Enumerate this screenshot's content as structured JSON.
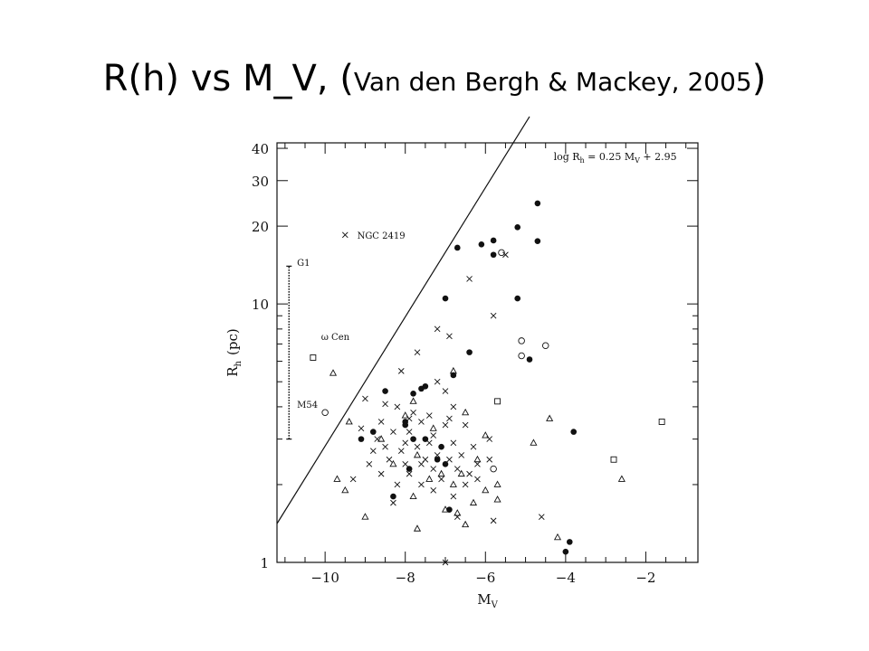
{
  "slide": {
    "title_main": "R(h) vs M_V, ",
    "title_paren_open": "(",
    "title_sub": "Van den Bergh & Mackey, 2005",
    "title_paren_close": ")"
  },
  "colors": {
    "ink": "#111111",
    "background": "#ffffff"
  },
  "chart_data": {
    "type": "scatter",
    "xlabel": "M",
    "xlabel_sub": "V",
    "ylabel": "R",
    "ylabel_sub": "h",
    "ylabel_unit": "(pc)",
    "xlim": [
      -11.2,
      -0.7
    ],
    "ylim": [
      1,
      42
    ],
    "y_scale": "log",
    "x_ticks": [
      -10,
      -8,
      -6,
      -4,
      -2
    ],
    "x_tick_labels": [
      "−10",
      "−8",
      "−6",
      "−4",
      "−2"
    ],
    "y_ticks": [
      1,
      10,
      20,
      30,
      40
    ],
    "y_tick_labels": [
      "1",
      "10",
      "20",
      "30",
      "40"
    ],
    "grid": false,
    "line": {
      "equation_lhs": "log R",
      "equation_lhs_sub": "h",
      "equation_mid": " = 0.25 M",
      "equation_mid_sub": "V",
      "equation_rhs": " + 2.95",
      "slope": 0.25,
      "intercept": 2.95,
      "x_range": [
        -11.2,
        -4.9
      ]
    },
    "labels": [
      {
        "text": "NGC 2419",
        "x": -9.2,
        "y": 18.5
      },
      {
        "text": "G1",
        "x": -10.7,
        "y": 14.5
      },
      {
        "text": "ω Cen",
        "x": -10.1,
        "y": 7.5
      },
      {
        "text": "M54",
        "x": -10.7,
        "y": 4.1
      }
    ],
    "error_bar": {
      "x": -10.9,
      "y_low": 3.0,
      "y_high": 14.0
    },
    "series": [
      {
        "marker": "filled-circle",
        "points": [
          [
            -4.7,
            24.5
          ],
          [
            -5.2,
            19.8
          ],
          [
            -4.7,
            17.5
          ],
          [
            -5.8,
            17.6
          ],
          [
            -6.7,
            16.5
          ],
          [
            -6.1,
            17.0
          ],
          [
            -5.8,
            15.5
          ],
          [
            -5.2,
            10.5
          ],
          [
            -7.0,
            10.5
          ],
          [
            -6.4,
            6.5
          ],
          [
            -6.8,
            5.3
          ],
          [
            -7.5,
            4.8
          ],
          [
            -7.8,
            4.5
          ],
          [
            -8.0,
            3.5
          ],
          [
            -8.5,
            4.6
          ],
          [
            -7.6,
            4.7
          ],
          [
            -4.9,
            6.1
          ],
          [
            -3.8,
            3.2
          ],
          [
            -7.8,
            3.0
          ],
          [
            -7.5,
            3.0
          ],
          [
            -7.1,
            2.8
          ],
          [
            -8.8,
            3.2
          ],
          [
            -9.1,
            3.0
          ],
          [
            -8.0,
            3.4
          ],
          [
            -7.2,
            2.5
          ],
          [
            -7.9,
            2.3
          ],
          [
            -7.0,
            2.4
          ],
          [
            -8.3,
            1.8
          ],
          [
            -6.9,
            1.6
          ],
          [
            -3.9,
            1.2
          ],
          [
            -4.0,
            1.1
          ]
        ]
      },
      {
        "marker": "cross",
        "points": [
          [
            -9.5,
            18.5
          ],
          [
            -5.5,
            15.5
          ],
          [
            -6.4,
            12.5
          ],
          [
            -5.8,
            9.0
          ],
          [
            -7.2,
            8.0
          ],
          [
            -6.9,
            7.5
          ],
          [
            -7.7,
            6.5
          ],
          [
            -8.1,
            5.5
          ],
          [
            -7.2,
            5.0
          ],
          [
            -7.0,
            4.6
          ],
          [
            -9.0,
            4.3
          ],
          [
            -8.5,
            4.1
          ],
          [
            -8.2,
            4.0
          ],
          [
            -7.8,
            3.8
          ],
          [
            -7.4,
            3.7
          ],
          [
            -6.9,
            3.6
          ],
          [
            -8.6,
            3.5
          ],
          [
            -7.6,
            3.5
          ],
          [
            -7.0,
            3.4
          ],
          [
            -6.5,
            3.4
          ],
          [
            -9.1,
            3.3
          ],
          [
            -8.3,
            3.2
          ],
          [
            -7.9,
            3.2
          ],
          [
            -7.3,
            3.1
          ],
          [
            -8.7,
            3.0
          ],
          [
            -8.0,
            2.9
          ],
          [
            -7.4,
            2.9
          ],
          [
            -6.8,
            2.9
          ],
          [
            -8.5,
            2.8
          ],
          [
            -7.7,
            2.8
          ],
          [
            -6.3,
            2.8
          ],
          [
            -8.8,
            2.7
          ],
          [
            -8.1,
            2.7
          ],
          [
            -7.2,
            2.6
          ],
          [
            -6.6,
            2.6
          ],
          [
            -8.4,
            2.5
          ],
          [
            -7.5,
            2.5
          ],
          [
            -6.9,
            2.5
          ],
          [
            -5.9,
            2.5
          ],
          [
            -8.9,
            2.4
          ],
          [
            -8.0,
            2.4
          ],
          [
            -7.6,
            2.4
          ],
          [
            -6.2,
            2.4
          ],
          [
            -7.3,
            2.3
          ],
          [
            -6.7,
            2.3
          ],
          [
            -8.6,
            2.2
          ],
          [
            -7.9,
            2.2
          ],
          [
            -6.4,
            2.2
          ],
          [
            -9.3,
            2.1
          ],
          [
            -7.1,
            2.1
          ],
          [
            -8.2,
            2.0
          ],
          [
            -7.6,
            2.0
          ],
          [
            -6.5,
            2.0
          ],
          [
            -7.3,
            1.9
          ],
          [
            -6.8,
            1.8
          ],
          [
            -8.3,
            1.7
          ],
          [
            -6.7,
            1.5
          ],
          [
            -6.2,
            2.1
          ],
          [
            -5.9,
            3.0
          ],
          [
            -6.8,
            4.0
          ],
          [
            -7.9,
            3.6
          ],
          [
            -4.6,
            1.5
          ],
          [
            -5.8,
            1.45
          ],
          [
            -7.0,
            1.0
          ]
        ]
      },
      {
        "marker": "triangle",
        "points": [
          [
            -9.4,
            3.5
          ],
          [
            -8.0,
            3.7
          ],
          [
            -7.8,
            4.2
          ],
          [
            -7.3,
            3.3
          ],
          [
            -6.5,
            3.8
          ],
          [
            -6.8,
            5.5
          ],
          [
            -8.6,
            3.0
          ],
          [
            -7.7,
            2.6
          ],
          [
            -7.1,
            2.2
          ],
          [
            -6.2,
            2.5
          ],
          [
            -6.0,
            3.1
          ],
          [
            -8.3,
            2.4
          ],
          [
            -7.4,
            2.1
          ],
          [
            -6.8,
            2.0
          ],
          [
            -6.0,
            1.9
          ],
          [
            -6.6,
            2.2
          ],
          [
            -5.7,
            2.0
          ],
          [
            -9.7,
            2.1
          ],
          [
            -9.5,
            1.9
          ],
          [
            -7.8,
            1.8
          ],
          [
            -6.3,
            1.7
          ],
          [
            -5.7,
            1.75
          ],
          [
            -9.0,
            1.5
          ],
          [
            -7.0,
            1.6
          ],
          [
            -6.7,
            1.55
          ],
          [
            -7.7,
            1.35
          ],
          [
            -6.5,
            1.4
          ],
          [
            -4.4,
            3.6
          ],
          [
            -4.8,
            2.9
          ],
          [
            -2.6,
            2.1
          ],
          [
            -4.2,
            1.25
          ],
          [
            -9.8,
            5.4
          ]
        ]
      },
      {
        "marker": "open-circle",
        "points": [
          [
            -5.6,
            15.8
          ],
          [
            -5.1,
            7.2
          ],
          [
            -4.5,
            6.9
          ],
          [
            -5.1,
            6.3
          ],
          [
            -10.0,
            3.8
          ],
          [
            -5.8,
            2.3
          ]
        ]
      },
      {
        "marker": "open-square",
        "points": [
          [
            -10.3,
            6.2
          ],
          [
            -5.7,
            4.2
          ],
          [
            -1.6,
            3.5
          ],
          [
            -2.8,
            2.5
          ]
        ]
      }
    ]
  }
}
